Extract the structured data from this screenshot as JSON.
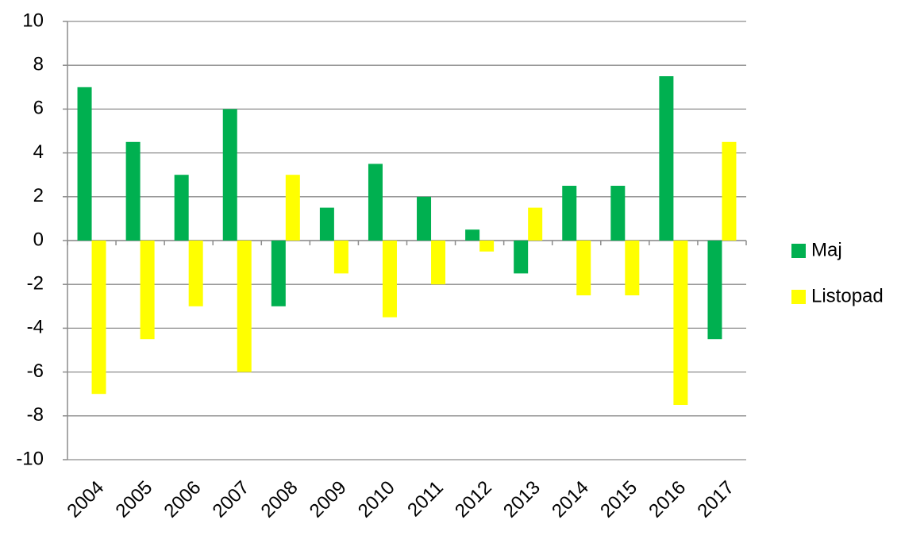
{
  "chart_data": {
    "type": "bar",
    "categories": [
      "2004",
      "2005",
      "2006",
      "2007",
      "2008",
      "2009",
      "2010",
      "2011",
      "2012",
      "2013",
      "2014",
      "2015",
      "2016",
      "2017"
    ],
    "series": [
      {
        "name": "Maj",
        "color": "#00b050",
        "values": [
          7,
          4.5,
          3,
          6,
          -3,
          1.5,
          3.5,
          2,
          0.5,
          -1.5,
          2.5,
          2.5,
          7.5,
          -4.5
        ]
      },
      {
        "name": "Listopad",
        "color": "#ffff00",
        "values": [
          -7,
          -4.5,
          -3,
          -6,
          3,
          -1.5,
          -3.5,
          -2,
          -0.5,
          1.5,
          -2.5,
          -2.5,
          -7.5,
          4.5
        ]
      }
    ],
    "ylim": [
      -10,
      10
    ],
    "yticks": [
      -10,
      -8,
      -6,
      -4,
      -2,
      0,
      2,
      4,
      6,
      8,
      10
    ],
    "grid": true,
    "legend": "right"
  }
}
